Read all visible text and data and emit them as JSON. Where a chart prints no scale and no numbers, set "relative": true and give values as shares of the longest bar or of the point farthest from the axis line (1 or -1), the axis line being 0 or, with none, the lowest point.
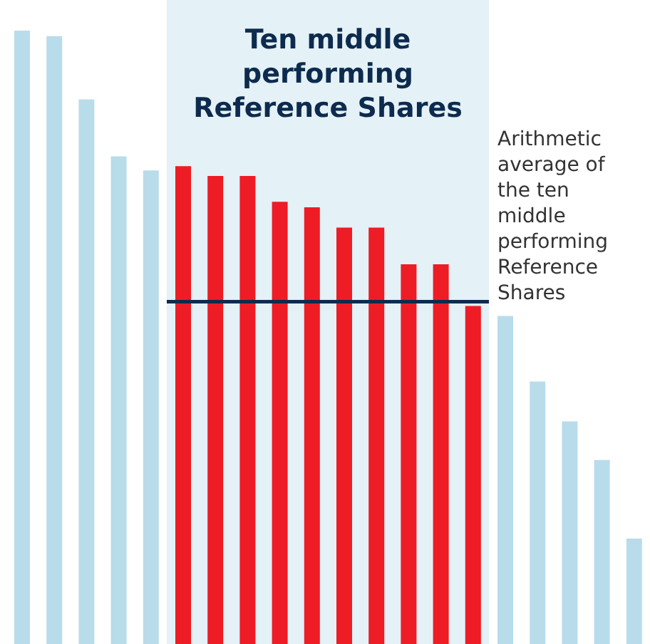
{
  "chart_data": {
    "type": "bar",
    "relative": true,
    "categories": [
      null,
      null,
      null,
      null,
      null,
      null,
      null,
      null,
      null,
      null,
      null,
      null,
      null,
      null,
      null,
      null,
      null,
      null,
      null,
      null
    ],
    "values": [
      1,
      0.991,
      0.888,
      0.795,
      0.772,
      0.779,
      0.763,
      0.763,
      0.721,
      0.712,
      0.679,
      0.679,
      0.619,
      0.619,
      0.551,
      0.535,
      0.428,
      0.363,
      0.3,
      0.172
    ],
    "colors": [
      "#b9dceb",
      "#b9dceb",
      "#b9dceb",
      "#b9dceb",
      "#b9dceb",
      "#ee1c25",
      "#ee1c25",
      "#ee1c25",
      "#ee1c25",
      "#ee1c25",
      "#ee1c25",
      "#ee1c25",
      "#ee1c25",
      "#ee1c25",
      "#ee1c25",
      "#b9dceb",
      "#b9dceb",
      "#b9dceb",
      "#b9dceb",
      "#b9dceb"
    ],
    "title": "Ten middle performing Reference Shares",
    "ref_lines": [
      {
        "axis": "y",
        "value": 0.558,
        "label": "Arithmetic average of the ten middle performing Reference Shares",
        "color": "#0d2b4e"
      }
    ],
    "grid": false,
    "legend": false
  }
}
